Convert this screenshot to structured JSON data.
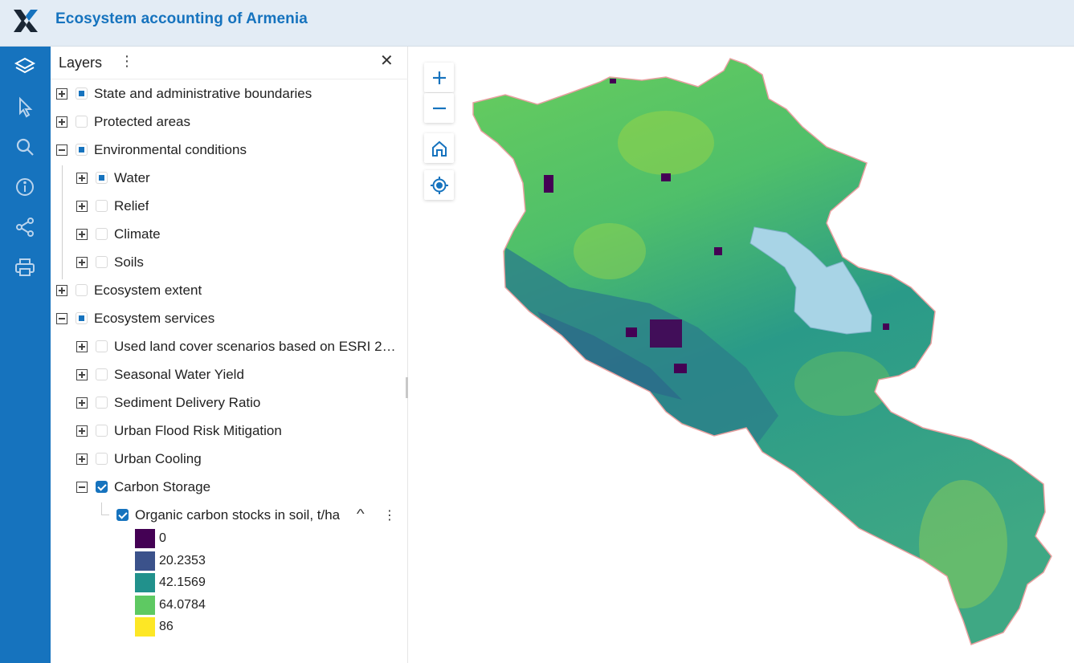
{
  "app": {
    "title": "Ecosystem accounting of Armenia",
    "accent": "#1673be",
    "logo_icon": "x-logo-icon"
  },
  "toolbar": {
    "tools": [
      "layers-icon",
      "select-pointer-icon",
      "search-icon",
      "info-icon",
      "share-icon",
      "print-icon"
    ]
  },
  "panel": {
    "title": "Layers",
    "menu_glyph": "⋮",
    "close_glyph": "✕",
    "layers": [
      {
        "label": "State and administrative boundaries",
        "expander": "plus",
        "state": "partial"
      },
      {
        "label": "Protected areas",
        "expander": "plus",
        "state": "unchecked"
      },
      {
        "label": "Environmental conditions",
        "expander": "minus",
        "state": "partial",
        "children": [
          {
            "label": "Water",
            "expander": "plus",
            "state": "partial"
          },
          {
            "label": "Relief",
            "expander": "plus",
            "state": "unchecked"
          },
          {
            "label": "Climate",
            "expander": "plus",
            "state": "unchecked"
          },
          {
            "label": "Soils",
            "expander": "plus",
            "state": "unchecked"
          }
        ]
      },
      {
        "label": "Ecosystem extent",
        "expander": "plus",
        "state": "unchecked"
      },
      {
        "label": "Ecosystem services",
        "expander": "minus",
        "state": "partial",
        "children": [
          {
            "label": "Used land cover scenarios based on ESRI 2…",
            "expander": "plus",
            "state": "unchecked"
          },
          {
            "label": "Seasonal Water Yield",
            "expander": "plus",
            "state": "unchecked"
          },
          {
            "label": "Sediment Delivery Ratio",
            "expander": "plus",
            "state": "unchecked"
          },
          {
            "label": "Urban Flood Risk Mitigation",
            "expander": "plus",
            "state": "unchecked"
          },
          {
            "label": "Urban Cooling",
            "expander": "plus",
            "state": "unchecked"
          },
          {
            "label": "Carbon Storage",
            "expander": "minus",
            "state": "checked",
            "children": [
              {
                "label": "Organic carbon stocks in soil, t/ha",
                "state": "checked",
                "collapse_glyph": "^",
                "menu_glyph": "⋮"
              }
            ]
          }
        ]
      }
    ]
  },
  "legend": {
    "items": [
      {
        "label": "0",
        "color": "#440154"
      },
      {
        "label": "20.2353",
        "color": "#3b528b"
      },
      {
        "label": "42.1569",
        "color": "#21918c"
      },
      {
        "label": "64.0784",
        "color": "#5ec962"
      },
      {
        "label": "86",
        "color": "#fde725"
      }
    ]
  },
  "map": {
    "controls": [
      "zoom-in-icon",
      "zoom-out-icon",
      "home-icon",
      "locate-icon"
    ],
    "lake_color": "#a8d4e6",
    "border_color": "#e8a0a0"
  }
}
